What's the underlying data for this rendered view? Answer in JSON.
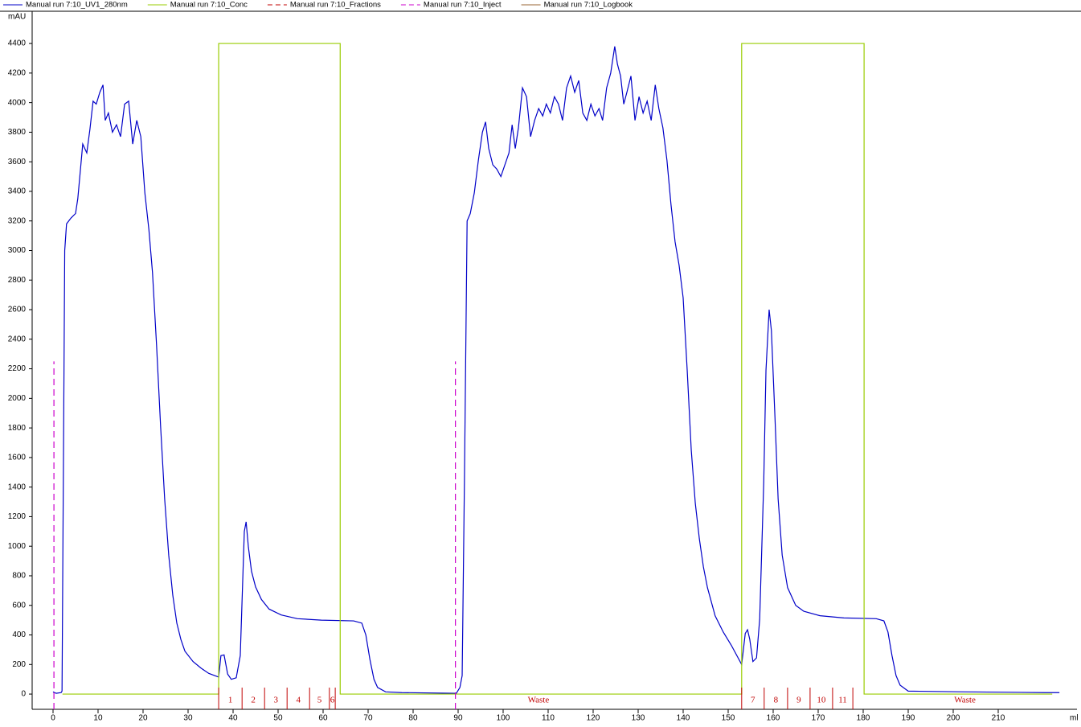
{
  "chart_data": {
    "type": "line",
    "y_label": "mAU",
    "x_label": "ml",
    "xlim": [
      -4.64,
      227.5
    ],
    "ylim": [
      -103,
      4618
    ],
    "xticks": [
      0,
      10,
      20,
      30,
      40,
      50,
      60,
      70,
      80,
      90,
      100,
      110,
      120,
      130,
      140,
      150,
      160,
      170,
      180,
      190,
      200,
      210
    ],
    "yticks": [
      0,
      200,
      400,
      600,
      800,
      1000,
      1200,
      1400,
      1600,
      1800,
      2000,
      2200,
      2400,
      2600,
      2800,
      3000,
      3200,
      3400,
      3600,
      3800,
      4000,
      4200,
      4400
    ],
    "series": [
      {
        "name": "Manual run 7:10_UV1_280nm",
        "kind": "line",
        "color": "#0000c8",
        "x": [
          0,
          0.7,
          1.8,
          2.0,
          2.6,
          3.0,
          4,
          5,
          5.5,
          6.1,
          6.6,
          7.5,
          8.2,
          8.9,
          9.6,
          10.4,
          11.1,
          11.6,
          12.3,
          13.2,
          14.1,
          15,
          15.9,
          16.8,
          17.7,
          18.6,
          19.5,
          20.4,
          21.3,
          22.1,
          23,
          23.9,
          24.8,
          25.7,
          26.6,
          27.5,
          28.4,
          29.3,
          31.1,
          32.9,
          34.6,
          36.8,
          37.3,
          38,
          38.8,
          39.6,
          40.7,
          41.6,
          42.5,
          42.9,
          43.4,
          44.1,
          45,
          46.3,
          48,
          50.7,
          54.3,
          59.6,
          66.8,
          68.6,
          69.5,
          70.4,
          71.3,
          72.1,
          73.9,
          77.5,
          89.6,
          90.4,
          90.9,
          91.4,
          92,
          92.7,
          93.6,
          94.5,
          95.4,
          96.1,
          96.8,
          97.7,
          98.6,
          99.5,
          100.4,
          101.3,
          102,
          102.7,
          103.4,
          104.3,
          105.2,
          106.1,
          107,
          107.9,
          108.8,
          109.6,
          110.5,
          111.4,
          112.3,
          113.2,
          114.1,
          115,
          115.9,
          116.8,
          117.7,
          118.6,
          119.5,
          120.4,
          121.3,
          122.1,
          123,
          123.9,
          124.8,
          125.4,
          126.1,
          126.8,
          127.5,
          128.4,
          129.3,
          130.2,
          131.1,
          132,
          132.9,
          133.8,
          134.6,
          135.5,
          136.4,
          137.3,
          138.2,
          139.1,
          140,
          140.9,
          141.8,
          142.7,
          143.6,
          144.5,
          145.4,
          147.1,
          148.9,
          150.7,
          153,
          153.8,
          154.3,
          154.8,
          155.5,
          156.3,
          157,
          157.9,
          158.4,
          159.1,
          159.6,
          160.4,
          161.1,
          162,
          163.2,
          165,
          166.8,
          170.4,
          175.7,
          182.9,
          184.6,
          185.5,
          186.4,
          187.3,
          188.2,
          190,
          202.5,
          220.4,
          223.6
        ],
        "values": [
          15,
          5,
          10,
          20,
          3000,
          3180,
          3220,
          3250,
          3350,
          3550,
          3720,
          3660,
          3820,
          4010,
          3990,
          4070,
          4120,
          3880,
          3930,
          3800,
          3850,
          3770,
          3990,
          4010,
          3720,
          3880,
          3770,
          3390,
          3140,
          2850,
          2360,
          1810,
          1320,
          940,
          670,
          480,
          370,
          290,
          220,
          175,
          140,
          115,
          260,
          265,
          135,
          100,
          110,
          260,
          1100,
          1165,
          995,
          830,
          725,
          640,
          575,
          535,
          510,
          500,
          495,
          480,
          400,
          235,
          100,
          45,
          15,
          10,
          5,
          45,
          125,
          1430,
          3200,
          3250,
          3390,
          3610,
          3800,
          3870,
          3690,
          3580,
          3550,
          3500,
          3580,
          3660,
          3850,
          3690,
          3830,
          4100,
          4040,
          3770,
          3880,
          3960,
          3910,
          3990,
          3930,
          4040,
          3990,
          3880,
          4100,
          4180,
          4070,
          4150,
          3930,
          3880,
          3990,
          3910,
          3960,
          3880,
          4100,
          4200,
          4380,
          4260,
          4180,
          3990,
          4070,
          4180,
          3880,
          4040,
          3930,
          4010,
          3880,
          4120,
          3960,
          3830,
          3610,
          3310,
          3060,
          2900,
          2680,
          2190,
          1650,
          1290,
          1050,
          860,
          720,
          530,
          420,
          330,
          200,
          410,
          435,
          370,
          220,
          245,
          505,
          1430,
          2190,
          2600,
          2460,
          1870,
          1320,
          940,
          720,
          600,
          560,
          530,
          515,
          510,
          495,
          420,
          260,
          125,
          60,
          20,
          15,
          10,
          10
        ]
      },
      {
        "name": "Manual run 7:10_Conc",
        "kind": "line",
        "color": "#99cc00",
        "x": [
          2.1,
          36.8,
          36.8,
          63.8,
          63.8,
          153,
          153,
          180.2,
          180.2,
          222
        ],
        "values": [
          0,
          0,
          4400,
          4400,
          0,
          0,
          4400,
          4400,
          0,
          0
        ]
      },
      {
        "name": "Manual run 7:10_Fractions",
        "kind": "fractions",
        "color": "#c00000",
        "x": [
          36.8,
          42,
          47,
          52,
          57,
          61.4,
          62.7,
          153,
          158,
          163.2,
          168.2,
          173.2,
          177.7
        ],
        "labels": [
          "1",
          "2",
          "3",
          "4",
          "5",
          "6",
          "Waste",
          "7",
          "8",
          "9",
          "10",
          "11",
          "Waste"
        ]
      },
      {
        "name": "Manual run 7:10_Inject",
        "kind": "inject",
        "color": "#cc00cc",
        "x": [
          0.2,
          89.4
        ],
        "values": [
          2250,
          2250
        ]
      },
      {
        "name": "Manual run 7:10_Logbook",
        "kind": "logbook",
        "color": "#996633"
      }
    ]
  }
}
